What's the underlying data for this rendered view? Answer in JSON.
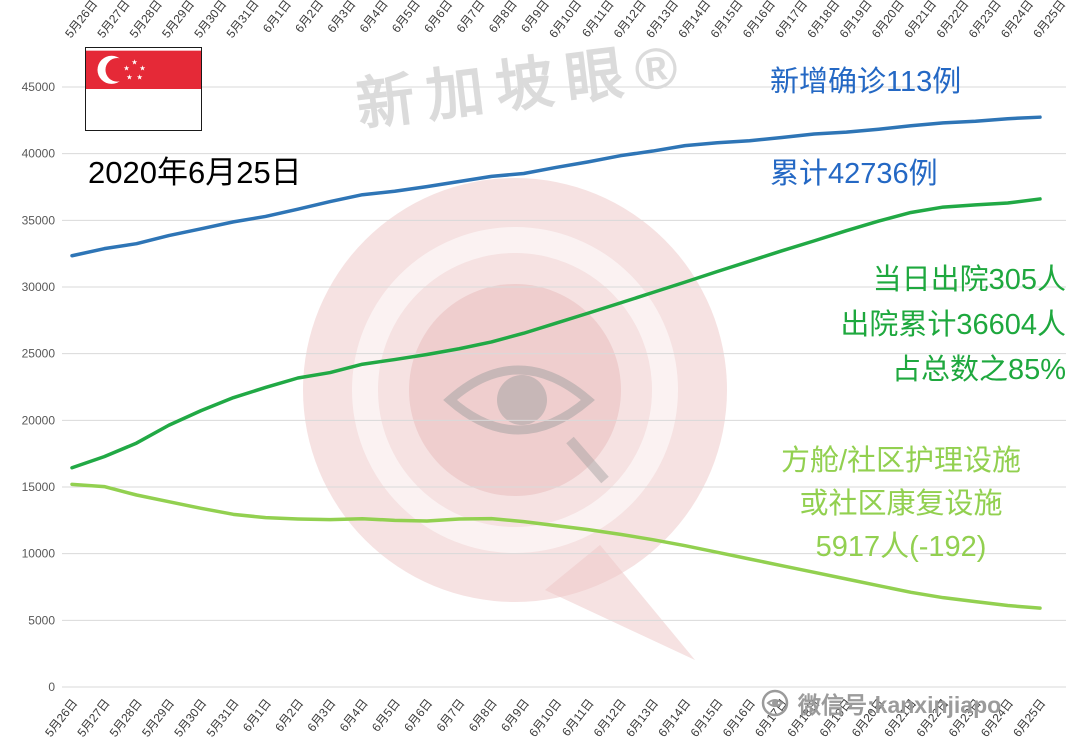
{
  "meta": {
    "date_label": "2020年6月25日",
    "watermark_title": "新加坡眼®",
    "watermark_footer": "微信号:kanxinjiapo"
  },
  "annotations": {
    "confirmed_line1": "新增确诊113例",
    "confirmed_line2": "累计42736例",
    "discharged_line1": "当日出院305人",
    "discharged_line2": "出院累计36604人",
    "discharged_line3": "占总数之85%",
    "community_line1": "方舱/社区护理设施",
    "community_line2": "或社区康复设施",
    "community_line3": "5917人(-192)"
  },
  "colors": {
    "confirmed_line": "#2e75b6",
    "discharged_line": "#21a945",
    "community_line": "#92d050",
    "grid": "#d9d9d9",
    "axis_text": "#595959",
    "tick_text": "#3a3a3a",
    "annotation_blue": "#2468c4",
    "annotation_green": "#1ea83e",
    "annotation_light_green": "#92d050",
    "watermark_pink": "#eec6c6",
    "watermark_gray": "#bebebe"
  },
  "chart_data": {
    "type": "line",
    "title": "",
    "xlabel": "",
    "ylabel": "",
    "ylim": [
      0,
      45000
    ],
    "ytick_step": 5000,
    "grid": true,
    "legend_position": "none",
    "categories": [
      "5月26日",
      "5月27日",
      "5月28日",
      "5月29日",
      "5月30日",
      "5月31日",
      "6月1日",
      "6月2日",
      "6月3日",
      "6月4日",
      "6月5日",
      "6月6日",
      "6月7日",
      "6月8日",
      "6月9日",
      "6月10日",
      "6月11日",
      "6月12日",
      "6月13日",
      "6月14日",
      "6月15日",
      "6月16日",
      "6月17日",
      "6月18日",
      "6月19日",
      "6月20日",
      "6月21日",
      "6月22日",
      "6月23日",
      "6月24日",
      "6月25日"
    ],
    "series": [
      {
        "name": "累计确诊",
        "color": "#2e75b6",
        "values": [
          32343,
          32876,
          33249,
          33860,
          34366,
          34884,
          35292,
          35836,
          36405,
          36922,
          37183,
          37527,
          37910,
          38296,
          38514,
          38965,
          39387,
          39850,
          40197,
          40604,
          40818,
          40969,
          41216,
          41473,
          41615,
          41833,
          42095,
          42313,
          42432,
          42623,
          42736
        ]
      },
      {
        "name": "出院累计",
        "color": "#21a945",
        "values": [
          16444,
          17276,
          18294,
          19631,
          20727,
          21699,
          22466,
          23175,
          23582,
          24209,
          24559,
          24938,
          25368,
          25877,
          26532,
          27286,
          28040,
          28808,
          29589,
          30366,
          31163,
          31938,
          32712,
          33459,
          34224,
          34942,
          35590,
          35995,
          36155,
          36299,
          36604
        ]
      },
      {
        "name": "方舱/社区护理设施或社区康复设施",
        "color": "#92d050",
        "values": [
          15200,
          15029,
          14400,
          13900,
          13400,
          12950,
          12700,
          12600,
          12550,
          12620,
          12500,
          12450,
          12600,
          12630,
          12400,
          12100,
          11800,
          11450,
          11050,
          10600,
          10100,
          9600,
          9100,
          8600,
          8100,
          7600,
          7100,
          6700,
          6400,
          6109,
          5917
        ]
      }
    ]
  }
}
